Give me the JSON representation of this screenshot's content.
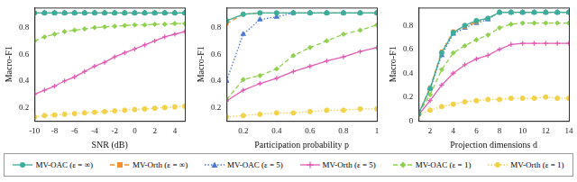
{
  "chart_data": [
    {
      "type": "line",
      "xlabel": "SNR (dB)",
      "ylabel": "Macro-F1",
      "grid": false,
      "legend": "bottom",
      "xlim": [
        -10,
        5
      ],
      "xticks": [
        -10,
        -8,
        -6,
        -4,
        -2,
        0,
        2,
        4
      ],
      "ylim": [
        0.1,
        0.95
      ],
      "yticks": [
        0.2,
        0.4,
        0.6,
        0.8
      ],
      "x": [
        -10,
        -9,
        -8,
        -7,
        -6,
        -5,
        -4,
        -3,
        -2,
        -1,
        0,
        1,
        2,
        3,
        4,
        5
      ],
      "series": [
        {
          "name": "MV-OAC (ε = ∞)",
          "color": "#3aae9a",
          "marker": "circle",
          "line_style": "solid",
          "values": [
            0.91,
            0.91,
            0.91,
            0.91,
            0.91,
            0.91,
            0.91,
            0.91,
            0.91,
            0.91,
            0.91,
            0.91,
            0.91,
            0.91,
            0.91,
            0.91
          ]
        },
        {
          "name": "MV-Orth (ε = ∞)",
          "color": "#f28e2b",
          "marker": "square",
          "line_style": "dashed",
          "values": [
            0.91,
            0.91,
            0.91,
            0.91,
            0.91,
            0.91,
            0.91,
            0.91,
            0.91,
            0.91,
            0.91,
            0.91,
            0.91,
            0.91,
            0.91,
            0.91
          ]
        },
        {
          "name": "MV-OAC (ε = 5)",
          "color": "#4e79d0",
          "marker": "triangle",
          "line_style": "dotted",
          "values": [
            0.91,
            0.91,
            0.91,
            0.91,
            0.91,
            0.91,
            0.91,
            0.91,
            0.91,
            0.91,
            0.91,
            0.91,
            0.91,
            0.91,
            0.91,
            0.91
          ]
        },
        {
          "name": "MV-Orth (ε = 5)",
          "color": "#e35cb4",
          "marker": "cross",
          "line_style": "solid",
          "values": [
            0.3,
            0.33,
            0.36,
            0.4,
            0.43,
            0.47,
            0.51,
            0.54,
            0.58,
            0.61,
            0.64,
            0.67,
            0.7,
            0.73,
            0.75,
            0.77
          ]
        },
        {
          "name": "MV-OAC (ε = 1)",
          "color": "#8fd14f",
          "marker": "diamond",
          "line_style": "dashed",
          "values": [
            0.7,
            0.73,
            0.75,
            0.77,
            0.78,
            0.79,
            0.8,
            0.805,
            0.81,
            0.815,
            0.82,
            0.82,
            0.825,
            0.825,
            0.83,
            0.83
          ]
        },
        {
          "name": "MV-Orth (ε = 1)",
          "color": "#f2d14b",
          "marker": "circle",
          "line_style": "dotted",
          "values": [
            0.13,
            0.14,
            0.145,
            0.15,
            0.155,
            0.16,
            0.165,
            0.17,
            0.175,
            0.18,
            0.185,
            0.19,
            0.195,
            0.2,
            0.205,
            0.21
          ]
        }
      ]
    },
    {
      "type": "line",
      "xlabel": "Participation probability p",
      "ylabel": "Macro-F1",
      "grid": false,
      "xlim": [
        0.1,
        1
      ],
      "xticks": [
        0.2,
        0.4,
        0.6,
        0.8,
        1
      ],
      "ylim": [
        0.1,
        0.95
      ],
      "yticks": [
        0.2,
        0.4,
        0.6,
        0.8
      ],
      "x": [
        0.1,
        0.2,
        0.3,
        0.4,
        0.5,
        0.6,
        0.7,
        0.8,
        0.9,
        1
      ],
      "series": [
        {
          "name": "MV-OAC (ε = ∞)",
          "color": "#3aae9a",
          "marker": "circle",
          "line_style": "solid",
          "values": [
            0.85,
            0.9,
            0.91,
            0.91,
            0.91,
            0.91,
            0.91,
            0.91,
            0.91,
            0.91
          ]
        },
        {
          "name": "MV-Orth (ε = ∞)",
          "color": "#f28e2b",
          "marker": "square",
          "line_style": "dashed",
          "values": [
            0.83,
            0.9,
            0.91,
            0.91,
            0.91,
            0.91,
            0.91,
            0.91,
            0.91,
            0.91
          ]
        },
        {
          "name": "MV-OAC (ε = 5)",
          "color": "#4e79d0",
          "marker": "triangle",
          "line_style": "dotted",
          "values": [
            0.4,
            0.75,
            0.86,
            0.88,
            0.91,
            0.91,
            0.91,
            0.91,
            0.91,
            0.91
          ]
        },
        {
          "name": "MV-Orth (ε = 5)",
          "color": "#e35cb4",
          "marker": "cross",
          "line_style": "solid",
          "values": [
            0.25,
            0.33,
            0.38,
            0.42,
            0.47,
            0.51,
            0.55,
            0.58,
            0.62,
            0.65
          ]
        },
        {
          "name": "MV-OAC (ε = 1)",
          "color": "#8fd14f",
          "marker": "diamond",
          "line_style": "dashed",
          "values": [
            0.26,
            0.41,
            0.44,
            0.49,
            0.59,
            0.65,
            0.7,
            0.75,
            0.78,
            0.82
          ]
        },
        {
          "name": "MV-Orth (ε = 1)",
          "color": "#f2d14b",
          "marker": "circle",
          "line_style": "dotted",
          "values": [
            0.13,
            0.14,
            0.15,
            0.16,
            0.16,
            0.17,
            0.18,
            0.18,
            0.19,
            0.19
          ]
        }
      ]
    },
    {
      "type": "line",
      "xlabel": "Projection dimensions d",
      "ylabel": "Macro-F1",
      "grid": false,
      "xlim": [
        1,
        14
      ],
      "xticks": [
        2,
        4,
        6,
        8,
        10,
        12,
        14
      ],
      "ylim": [
        0,
        0.95
      ],
      "yticks": [
        0,
        0.2,
        0.4,
        0.6,
        0.8
      ],
      "x": [
        1,
        2,
        3,
        4,
        5,
        6,
        7,
        8,
        9,
        10,
        11,
        12,
        13,
        14
      ],
      "series": [
        {
          "name": "MV-OAC (ε = ∞)",
          "color": "#3aae9a",
          "marker": "circle",
          "line_style": "solid",
          "values": [
            0.06,
            0.27,
            0.57,
            0.74,
            0.8,
            0.84,
            0.86,
            0.91,
            0.91,
            0.91,
            0.91,
            0.91,
            0.91,
            0.91
          ]
        },
        {
          "name": "MV-Orth (ε = ∞)",
          "color": "#f28e2b",
          "marker": "square",
          "line_style": "dashed",
          "values": [
            0.06,
            0.28,
            0.58,
            0.75,
            0.79,
            0.83,
            0.86,
            0.91,
            0.91,
            0.91,
            0.91,
            0.91,
            0.91,
            0.91
          ]
        },
        {
          "name": "MV-OAC (ε = 5)",
          "color": "#4e79d0",
          "marker": "triangle",
          "line_style": "dotted",
          "values": [
            0.06,
            0.27,
            0.55,
            0.73,
            0.78,
            0.82,
            0.85,
            0.91,
            0.91,
            0.91,
            0.91,
            0.91,
            0.91,
            0.91
          ]
        },
        {
          "name": "MV-Orth (ε = 5)",
          "color": "#e35cb4",
          "marker": "cross",
          "line_style": "solid",
          "values": [
            0.05,
            0.17,
            0.3,
            0.4,
            0.47,
            0.52,
            0.55,
            0.6,
            0.64,
            0.65,
            0.65,
            0.65,
            0.65,
            0.65
          ]
        },
        {
          "name": "MV-OAC (ε = 1)",
          "color": "#8fd14f",
          "marker": "diamond",
          "line_style": "dashed",
          "values": [
            0.06,
            0.22,
            0.43,
            0.57,
            0.63,
            0.68,
            0.72,
            0.78,
            0.81,
            0.82,
            0.82,
            0.82,
            0.82,
            0.82
          ]
        },
        {
          "name": "MV-Orth (ε = 1)",
          "color": "#f2d14b",
          "marker": "circle",
          "line_style": "dotted",
          "values": [
            0.05,
            0.09,
            0.12,
            0.14,
            0.16,
            0.17,
            0.18,
            0.18,
            0.19,
            0.19,
            0.19,
            0.2,
            0.19,
            0.19
          ]
        }
      ]
    }
  ]
}
